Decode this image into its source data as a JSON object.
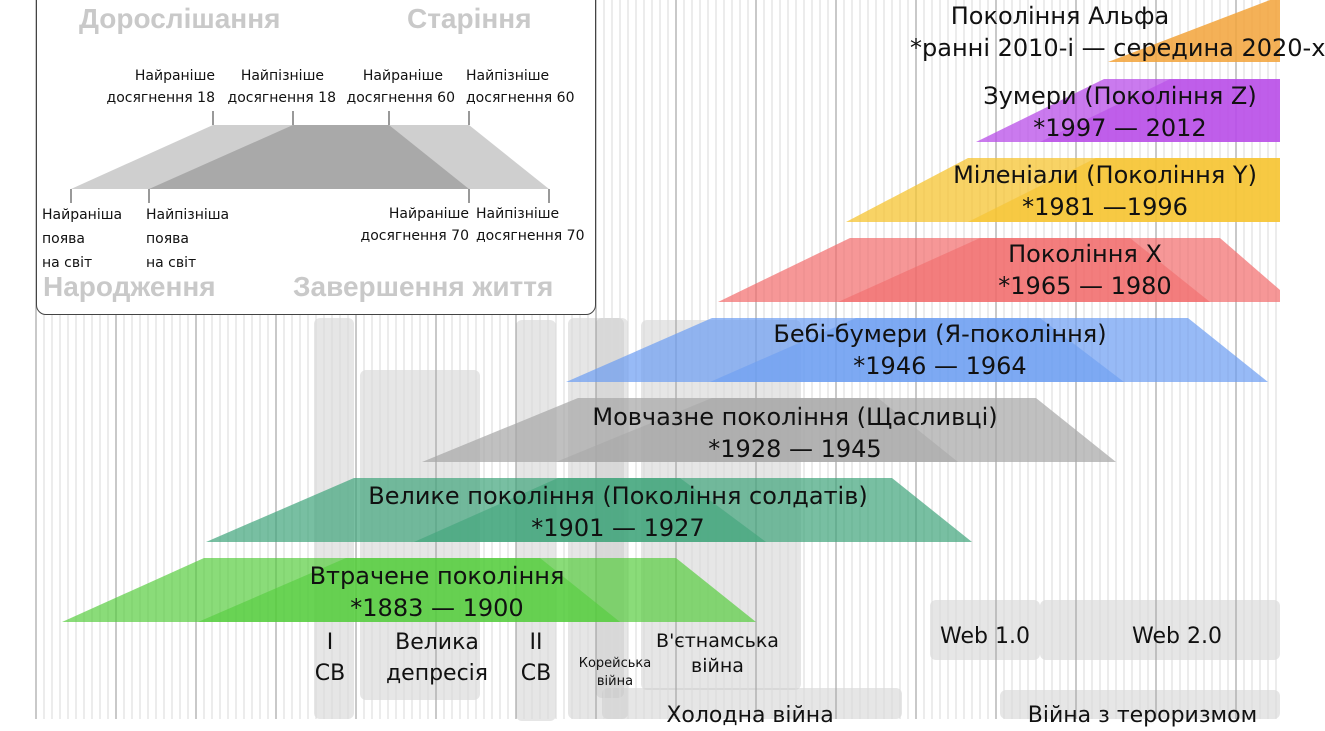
{
  "legend": {
    "title_adulthood": "Дорослішання",
    "title_old_age": "Старіння",
    "title_birth": "Народження",
    "title_death": "Завершення життя",
    "earliest_18": [
      "Найраніше",
      "досягнення 18"
    ],
    "latest_18": [
      "Найпізніше",
      "досягнення 18"
    ],
    "earliest_60": [
      "Найраніше",
      "досягнення 60"
    ],
    "latest_60": [
      "Найпізніше",
      "досягнення 60"
    ],
    "earliest_birth": [
      "Найраніша",
      "поява",
      "на світ"
    ],
    "latest_birth": [
      "Найпізніша",
      "поява",
      "на світ"
    ],
    "earliest_70": [
      "Найраніше",
      "досягнення 70"
    ],
    "latest_70": [
      "Найпізніше",
      "досягнення 70"
    ]
  },
  "generations": [
    {
      "name": "Покоління Альфа",
      "years": "*ранні 2010-і — середина 2020-х",
      "color": "#f2a33a"
    },
    {
      "name": "Зумери (Покоління Z)",
      "years": "*1997 — 2012",
      "color": "#b84ee8"
    },
    {
      "name": "Міленіали (Покоління Y)",
      "years": "*1981 —1996",
      "color": "#f5c431"
    },
    {
      "name": "Покоління X",
      "years": "*1965 — 1980",
      "color": "#f26b6b"
    },
    {
      "name": "Бебі-бумери (Я-покоління)",
      "years": "*1946 — 1964",
      "color": "#6b9df2"
    },
    {
      "name": "Мовчазне покоління (Щасливці)",
      "years": "*1928 — 1945",
      "color": "#a8a8a8"
    },
    {
      "name": "Велике покоління (Покоління солдатів)",
      "years": "*1901 — 1927",
      "color": "#3fa47a"
    },
    {
      "name": "Втрачене покоління",
      "years": "*1883 — 1900",
      "color": "#52cc3a"
    }
  ],
  "events": {
    "ww1": [
      "I",
      "СВ"
    ],
    "depression": [
      "Велика",
      "депресія"
    ],
    "ww2": [
      "II",
      "СВ"
    ],
    "korea": [
      "Корейська",
      "війна"
    ],
    "vietnam": [
      "В'єтнамська",
      "війна"
    ],
    "cold_war": "Холодна війна",
    "web1": "Web 1.0",
    "web2": "Web 2.0",
    "terror": "Війна з тероризмом"
  }
}
